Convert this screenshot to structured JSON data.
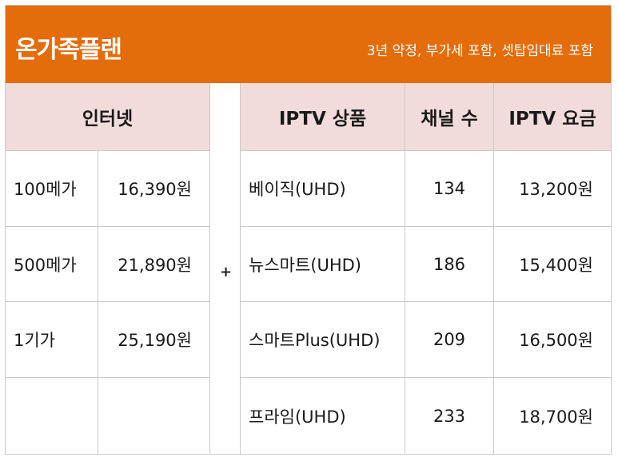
{
  "header": {
    "title": "온가족플랜",
    "subtitle": "3년 약정, 부가세 포함, 셋탑임대료 포함"
  },
  "columns": {
    "internet": "인터넷",
    "iptv_product": "IPTV 상품",
    "channels": "채널 수",
    "iptv_fee": "IPTV 요금"
  },
  "operator": "+",
  "internet_rows": [
    {
      "speed": "100메가",
      "price": "16,390원"
    },
    {
      "speed": "500메가",
      "price": "21,890원"
    },
    {
      "speed": "1기가",
      "price": "25,190원"
    },
    {
      "speed": "",
      "price": ""
    }
  ],
  "iptv_rows": [
    {
      "product": "베이직(UHD)",
      "channels": "134",
      "fee": "13,200원"
    },
    {
      "product": "뉴스마트(UHD)",
      "channels": "186",
      "fee": "15,400원"
    },
    {
      "product": "스마트Plus(UHD)",
      "channels": "209",
      "fee": "16,500원"
    },
    {
      "product": "프라임(UHD)",
      "channels": "233",
      "fee": "18,700원"
    }
  ]
}
